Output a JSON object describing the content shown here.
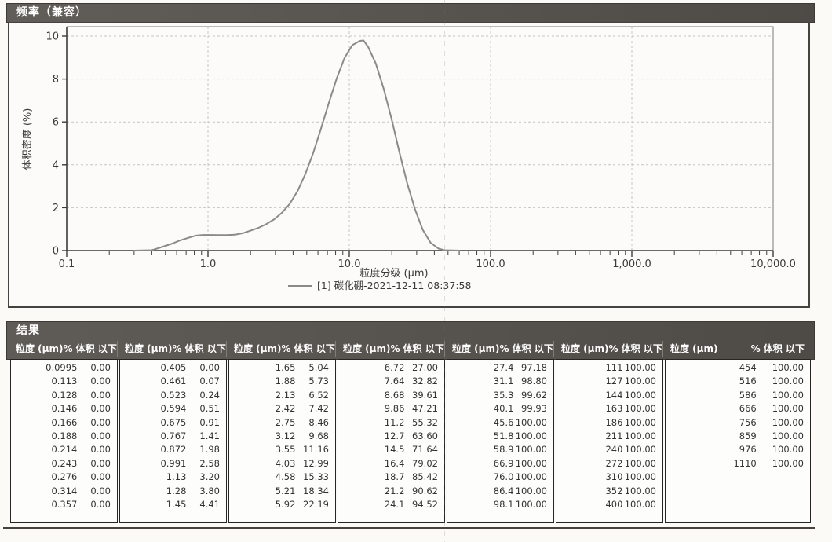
{
  "chart_panel": {
    "title": "频率（兼容）"
  },
  "chart_data": {
    "type": "line",
    "title": "频率（兼容）",
    "xlabel": "粒度分级 (µm)",
    "ylabel": "体积密度 (%)",
    "x_scale": "log",
    "xlim": [
      0.1,
      10000
    ],
    "ylim": [
      0,
      10
    ],
    "x_ticks": [
      0.1,
      1,
      10,
      100,
      1000,
      10000
    ],
    "x_tick_labels": [
      "0.1",
      "1.0",
      "10.0",
      "100.0",
      "1,000.0",
      "10,000.0"
    ],
    "y_ticks": [
      0,
      2,
      4,
      6,
      8,
      10
    ],
    "grid": true,
    "legend_position": "bottom",
    "line_color": "#8a8a8a",
    "series": [
      {
        "name": "[1] 碳化硼-2021-12-11 08:37:58",
        "points": [
          [
            0.3,
            0.0
          ],
          [
            0.4,
            0.02
          ],
          [
            0.43,
            0.08
          ],
          [
            0.49,
            0.2
          ],
          [
            0.56,
            0.33
          ],
          [
            0.63,
            0.47
          ],
          [
            0.72,
            0.59
          ],
          [
            0.82,
            0.7
          ],
          [
            0.93,
            0.73
          ],
          [
            1.06,
            0.73
          ],
          [
            1.2,
            0.72
          ],
          [
            1.36,
            0.72
          ],
          [
            1.55,
            0.74
          ],
          [
            1.76,
            0.81
          ],
          [
            2.0,
            0.93
          ],
          [
            2.27,
            1.06
          ],
          [
            2.58,
            1.23
          ],
          [
            2.93,
            1.45
          ],
          [
            3.33,
            1.76
          ],
          [
            3.78,
            2.17
          ],
          [
            4.3,
            2.77
          ],
          [
            4.88,
            3.56
          ],
          [
            5.55,
            4.55
          ],
          [
            6.31,
            5.69
          ],
          [
            7.16,
            6.88
          ],
          [
            8.14,
            8.02
          ],
          [
            9.25,
            8.98
          ],
          [
            10.5,
            9.58
          ],
          [
            11.9,
            9.78
          ],
          [
            12.6,
            9.8
          ],
          [
            13.6,
            9.5
          ],
          [
            15.4,
            8.72
          ],
          [
            17.5,
            7.56
          ],
          [
            19.9,
            6.15
          ],
          [
            22.6,
            4.61
          ],
          [
            25.7,
            3.14
          ],
          [
            29.2,
            1.92
          ],
          [
            33.1,
            0.97
          ],
          [
            37.6,
            0.37
          ],
          [
            42.8,
            0.09
          ],
          [
            47.0,
            0.02
          ],
          [
            60.0,
            0.0
          ]
        ]
      }
    ]
  },
  "results_panel": {
    "title": "结果",
    "size_header": "粒度 (µm)",
    "pct_header": "% 体积 以下",
    "groups": [
      [
        [
          "0.0995",
          "0.00"
        ],
        [
          "0.113",
          "0.00"
        ],
        [
          "0.128",
          "0.00"
        ],
        [
          "0.146",
          "0.00"
        ],
        [
          "0.166",
          "0.00"
        ],
        [
          "0.188",
          "0.00"
        ],
        [
          "0.214",
          "0.00"
        ],
        [
          "0.243",
          "0.00"
        ],
        [
          "0.276",
          "0.00"
        ],
        [
          "0.314",
          "0.00"
        ],
        [
          "0.357",
          "0.00"
        ]
      ],
      [
        [
          "0.405",
          "0.00"
        ],
        [
          "0.461",
          "0.07"
        ],
        [
          "0.523",
          "0.24"
        ],
        [
          "0.594",
          "0.51"
        ],
        [
          "0.675",
          "0.91"
        ],
        [
          "0.767",
          "1.41"
        ],
        [
          "0.872",
          "1.98"
        ],
        [
          "0.991",
          "2.58"
        ],
        [
          "1.13",
          "3.20"
        ],
        [
          "1.28",
          "3.80"
        ],
        [
          "1.45",
          "4.41"
        ]
      ],
      [
        [
          "1.65",
          "5.04"
        ],
        [
          "1.88",
          "5.73"
        ],
        [
          "2.13",
          "6.52"
        ],
        [
          "2.42",
          "7.42"
        ],
        [
          "2.75",
          "8.46"
        ],
        [
          "3.12",
          "9.68"
        ],
        [
          "3.55",
          "11.16"
        ],
        [
          "4.03",
          "12.99"
        ],
        [
          "4.58",
          "15.33"
        ],
        [
          "5.21",
          "18.34"
        ],
        [
          "5.92",
          "22.19"
        ]
      ],
      [
        [
          "6.72",
          "27.00"
        ],
        [
          "7.64",
          "32.82"
        ],
        [
          "8.68",
          "39.61"
        ],
        [
          "9.86",
          "47.21"
        ],
        [
          "11.2",
          "55.32"
        ],
        [
          "12.7",
          "63.60"
        ],
        [
          "14.5",
          "71.64"
        ],
        [
          "16.4",
          "79.02"
        ],
        [
          "18.7",
          "85.42"
        ],
        [
          "21.2",
          "90.62"
        ],
        [
          "24.1",
          "94.52"
        ]
      ],
      [
        [
          "27.4",
          "97.18"
        ],
        [
          "31.1",
          "98.80"
        ],
        [
          "35.3",
          "99.62"
        ],
        [
          "40.1",
          "99.93"
        ],
        [
          "45.6",
          "100.00"
        ],
        [
          "51.8",
          "100.00"
        ],
        [
          "58.9",
          "100.00"
        ],
        [
          "66.9",
          "100.00"
        ],
        [
          "76.0",
          "100.00"
        ],
        [
          "86.4",
          "100.00"
        ],
        [
          "98.1",
          "100.00"
        ]
      ],
      [
        [
          "111",
          "100.00"
        ],
        [
          "127",
          "100.00"
        ],
        [
          "144",
          "100.00"
        ],
        [
          "163",
          "100.00"
        ],
        [
          "186",
          "100.00"
        ],
        [
          "211",
          "100.00"
        ],
        [
          "240",
          "100.00"
        ],
        [
          "272",
          "100.00"
        ],
        [
          "310",
          "100.00"
        ],
        [
          "352",
          "100.00"
        ],
        [
          "400",
          "100.00"
        ]
      ],
      [
        [
          "454",
          "100.00"
        ],
        [
          "516",
          "100.00"
        ],
        [
          "586",
          "100.00"
        ],
        [
          "666",
          "100.00"
        ],
        [
          "756",
          "100.00"
        ],
        [
          "859",
          "100.00"
        ],
        [
          "976",
          "100.00"
        ],
        [
          "1110",
          "100.00"
        ]
      ]
    ]
  }
}
